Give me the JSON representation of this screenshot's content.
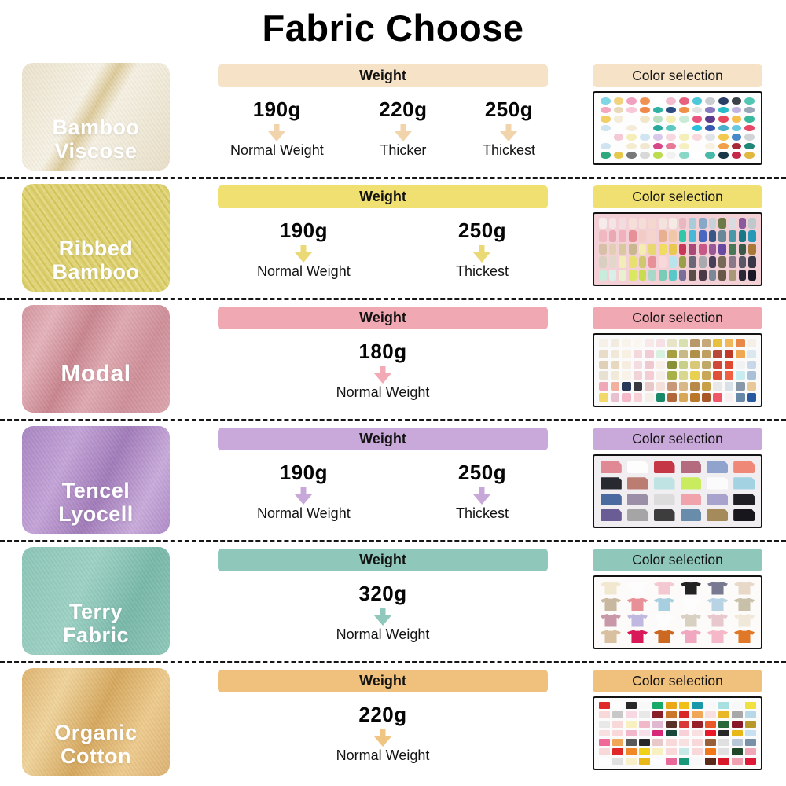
{
  "title": "Fabric Choose",
  "rows": [
    {
      "name_line1": "Bamboo",
      "name_line2": "Viscose",
      "weight_header": "Weight",
      "color_header": "Color selection",
      "weights": [
        {
          "value": "190g",
          "label": "Normal Weight"
        },
        {
          "value": "220g",
          "label": "Thicker"
        },
        {
          "value": "250g",
          "label": "Thickest"
        }
      ],
      "colors": {
        "bar": "#f6e2c6",
        "arrow": "#f2d4ac",
        "panel_bg": "#fdfdfd"
      },
      "palette": {
        "type": "dots",
        "swatches": [
          "#7fd6e6",
          "#f1d37e",
          "#f1a0bf",
          "#ef9150",
          "#ffffff",
          "#f3bcd0",
          "#e7607e",
          "#4cc8d8",
          "#c9ccd1",
          "#2a3f66",
          "#3c4048",
          "#52c8b4",
          "#f4a8c0",
          "#ead9b8",
          "#f8c8d8",
          "#ef8848",
          "#30b2a0",
          "#2a4a80",
          "#ef9048",
          "#e2e2e2",
          "#8878c0",
          "#28bcc8",
          "#c0b4e0",
          "#98a8b8",
          "#f2ce66",
          "#f4ecd8",
          "#fdfdfd",
          "#f2e6c8",
          "#b8e0c0",
          "#f4eeb0",
          "#c8ecd8",
          "#e85480",
          "#5c3a8c",
          "#e8485c",
          "#f4c050",
          "#38b89c",
          "#cfe4ef",
          "#ffffff",
          "#f4ecd8",
          "#fdfdfd",
          "#2aa89c",
          "#5cc8c0",
          "#ffffff",
          "#28c0dc",
          "#3858b0",
          "#48b0c8",
          "#68c8e0",
          "#e84868",
          "#ffffff",
          "#f4c8d4",
          "#f6eeb8",
          "#cfe6f2",
          "#d8c8ec",
          "#f8d8e0",
          "#f4eeb8",
          "#f8d8dc",
          "#e0e4e8",
          "#f2c850",
          "#4888c8",
          "#d0d4d8",
          "#cfe4f0",
          "#fdfdfd",
          "#f4ecd0",
          "#f2e8d0",
          "#d84888",
          "#e87898",
          "#f6f0c0",
          "#fdfdfd",
          "#f8f0e0",
          "#f0a048",
          "#a82838",
          "#208878",
          "#30a87c",
          "#e8c84c",
          "#787878",
          "#d8d8d8",
          "#bcdc50",
          "#f2f2f2",
          "#88d8c8",
          "#ffffff",
          "#48b8a8",
          "#183848",
          "#c82848",
          "#e0b840"
        ]
      }
    },
    {
      "name_line1": "Ribbed",
      "name_line2": "Bamboo",
      "weight_header": "Weight",
      "color_header": "Color selection",
      "weights": [
        {
          "value": "190g",
          "label": "Normal Weight"
        },
        {
          "value": "250g",
          "label": "Thickest"
        }
      ],
      "colors": {
        "bar": "#f0e072",
        "arrow": "#ead974",
        "panel_bg": "#f3d0d6"
      },
      "palette": {
        "type": "chips",
        "swatches": [
          "#f6ecec",
          "#f4e4e4",
          "#f2dce0",
          "#f4e0d8",
          "#f6ded8",
          "#f4d8d0",
          "#f2e4dc",
          "#f4ece4",
          "#e8b8c0",
          "#a8ccd8",
          "#88a8c8",
          "#c8d0d8",
          "#6b7a46",
          "#d8dce0",
          "#8a5a9c",
          "#c0c8cc",
          "#f0b8c0",
          "#e8a8b4",
          "#f0b0bc",
          "#e89098",
          "#f2ccc4",
          "#f4d4cc",
          "#e8b090",
          "#f0c8a8",
          "#30c8a8",
          "#48b8d8",
          "#4868c0",
          "#385888",
          "#688898",
          "#4898a8",
          "#187888",
          "#2898b8",
          "#d8c0a8",
          "#e0cfb0",
          "#d8c8a0",
          "#c8b890",
          "#f4ecb0",
          "#e8d870",
          "#f0dc60",
          "#e8c850",
          "#c83858",
          "#a84878",
          "#c85888",
          "#985898",
          "#6848a0",
          "#487858",
          "#385848",
          "#a87838",
          "#d8cfc0",
          "#e0d8c8",
          "#f2ecb8",
          "#e8e070",
          "#d0c870",
          "#e89098",
          "#f8d8d8",
          "#b8e4ec",
          "#98a048",
          "#686878",
          "#a8aab0",
          "#4a3f58",
          "#786858",
          "#887888",
          "#585868",
          "#383848",
          "#c8ecdc",
          "#d8f0e8",
          "#e8f0d0",
          "#d8e860",
          "#c8dc50",
          "#a8d8c8",
          "#78ccb8",
          "#58c8c8",
          "#787098",
          "#585048",
          "#483848",
          "#7a8898",
          "#685848",
          "#a89878",
          "#282838",
          "#181828"
        ]
      }
    },
    {
      "name_line1": "Modal",
      "name_line2": "",
      "weight_header": "Weight",
      "color_header": "Color selection",
      "weights": [
        {
          "value": "180g",
          "label": "Normal Weight"
        }
      ],
      "colors": {
        "bar": "#f0a8b2",
        "arrow": "#f2aab4",
        "panel_bg": "#fbfafa"
      },
      "palette": {
        "type": "squares",
        "swatches": [
          "#f6f0e8",
          "#f2ece0",
          "#f8f4ec",
          "#fbf6f0",
          "#f8e8e8",
          "#f6e0e4",
          "#e8e4c8",
          "#d8e0b0",
          "#b89868",
          "#c8a878",
          "#e8c040",
          "#f0b858",
          "#e88848",
          "#f4f0e8",
          "#e8dcc8",
          "#f2e8d8",
          "#f8f0e0",
          "#f4d8dc",
          "#f2ccd4",
          "#d8f0e0",
          "#a8a040",
          "#c8b888",
          "#b09048",
          "#c0a060",
          "#b84838",
          "#c03828",
          "#f0a850",
          "#dce8f0",
          "#e0d0b8",
          "#e8d8c0",
          "#f6ece0",
          "#f4dce0",
          "#f0c8d0",
          "#f8f0e8",
          "#889038",
          "#c8d088",
          "#d8c878",
          "#c0a868",
          "#d04838",
          "#e04830",
          "#f2f2f2",
          "#c8d8e8",
          "#e8e0d0",
          "#f2ead8",
          "#f8f2e8",
          "#f2d4d8",
          "#f4ccd4",
          "#f6eee8",
          "#a8b048",
          "#d8d890",
          "#e8d050",
          "#c8a858",
          "#e05038",
          "#f06040",
          "#c8ecf0",
          "#a8c0d8",
          "#f0a8b8",
          "#f2b0a0",
          "#283858",
          "#383840",
          "#e8c8c8",
          "#f4e0d8",
          "#c89878",
          "#d8b888",
          "#b88848",
          "#c8a048",
          "#e8e8e8",
          "#d8e0e8",
          "#8898a8",
          "#e8c898",
          "#f2d868",
          "#e8c0d0",
          "#f4b8c8",
          "#f8d0d8",
          "#f4f0e8",
          "#188868",
          "#b06838",
          "#d8a858",
          "#b87828",
          "#a85828",
          "#f05868",
          "#f8f0f0",
          "#6888a8",
          "#2858a0"
        ]
      }
    },
    {
      "name_line1": "Tencel",
      "name_line2": "Lyocell",
      "weight_header": "Weight",
      "color_header": "Color selection",
      "weights": [
        {
          "value": "190g",
          "label": "Normal Weight"
        },
        {
          "value": "250g",
          "label": "Thickest"
        }
      ],
      "colors": {
        "bar": "#c9a8da",
        "arrow": "#c8a8d8",
        "panel_bg": "#f0eef1"
      },
      "palette": {
        "type": "cards",
        "swatches": [
          "#e08894",
          "#fdfdfd",
          "#c63746",
          "#b56b7e",
          "#8fa3cc",
          "#f08878",
          "#282830",
          "#bb7c72",
          "#bfe3e3",
          "#c8ec5e",
          "#fbfbfb",
          "#a3d2e3",
          "#4a6aa0",
          "#9b8fa8",
          "#dcdcdc",
          "#f0a3ab",
          "#a8a3cc",
          "#1e1e24",
          "#6a5c94",
          "#a5a5a5",
          "#3d3d3d",
          "#6a8cab",
          "#a58a5c",
          "#16161c"
        ]
      }
    },
    {
      "name_line1": "Terry",
      "name_line2": "Fabric",
      "weight_header": "Weight",
      "color_header": "Color selection",
      "weights": [
        {
          "value": "320g",
          "label": "Normal Weight"
        }
      ],
      "colors": {
        "bar": "#8fc8ba",
        "arrow": "#90c8bb",
        "panel_bg": "#fcfbfa"
      },
      "palette": {
        "type": "shirts",
        "swatches": [
          "#f2e8d0",
          "#fdfdfd",
          "#f4c8d0",
          "#222222",
          "#787890",
          "#e8d8c8",
          "#c8b8a0",
          "#e89098",
          "#a8cfe0",
          "#fdfdfd",
          "#b8d4e4",
          "#c8c0a8",
          "#c898a8",
          "#c0b8e0",
          "#fdfdfd",
          "#d8d0c0",
          "#e8c8cc",
          "#f0e8d8",
          "#d8c0a0",
          "#d81858",
          "#cc6820",
          "#f0a8c0",
          "#f4b8c8",
          "#e07828"
        ]
      }
    },
    {
      "name_line1": "Organic",
      "name_line2": "Cotton",
      "weight_header": "Weight",
      "color_header": "Color selection",
      "weights": [
        {
          "value": "220g",
          "label": "Normal Weight"
        }
      ],
      "colors": {
        "bar": "#f0c17c",
        "arrow": "#f0c584",
        "panel_bg": "#fbfbfb"
      },
      "palette": {
        "type": "squares",
        "swatches": [
          "#e02828",
          "#fdfdfd",
          "#282828",
          "#f8f8f8",
          "#18a868",
          "#e8a818",
          "#f0c018",
          "#1898a8",
          "#f8f8f8",
          "#a8e0e0",
          "#f8f8f8",
          "#f0e040",
          "#f8d8d8",
          "#c8c8c8",
          "#f8d8e0",
          "#e8e8e8",
          "#882028",
          "#c87828",
          "#d82828",
          "#f0a858",
          "#f8e0e0",
          "#e8b828",
          "#a8a8a8",
          "#b8d8e8",
          "#e8e8e8",
          "#f8d8d8",
          "#f8f0c0",
          "#f0b8c8",
          "#e0b8d0",
          "#583028",
          "#d83838",
          "#982028",
          "#e85828",
          "#286838",
          "#881828",
          "#b89828",
          "#f8e0e0",
          "#f8d8d8",
          "#f0b8c8",
          "#f8e0e8",
          "#d82878",
          "#184838",
          "#f8d0d8",
          "#f8e0e0",
          "#e81828",
          "#282828",
          "#e8b818",
          "#c8e0f0",
          "#f06898",
          "#f0a858",
          "#585858",
          "#282828",
          "#e8c8c8",
          "#f8d8d8",
          "#f8e0e0",
          "#f8d8d8",
          "#986038",
          "#e0e0e0",
          "#b8c8d8",
          "#7890a8",
          "#f8d8d8",
          "#e02828",
          "#f08828",
          "#f0d018",
          "#f8f0c0",
          "#f8d8d8",
          "#c8e8e8",
          "#f8d8d8",
          "#f07818",
          "#e0e0e0",
          "#204828",
          "#f0a8b8",
          "#fdfdfd",
          "#e0e0e0",
          "#f8f0c8",
          "#e8b818",
          "#fdfdfd",
          "#e86898",
          "#189878",
          "#f8f8f8",
          "#582818",
          "#d81828",
          "#f0a0b0",
          "#e01838"
        ]
      }
    }
  ]
}
